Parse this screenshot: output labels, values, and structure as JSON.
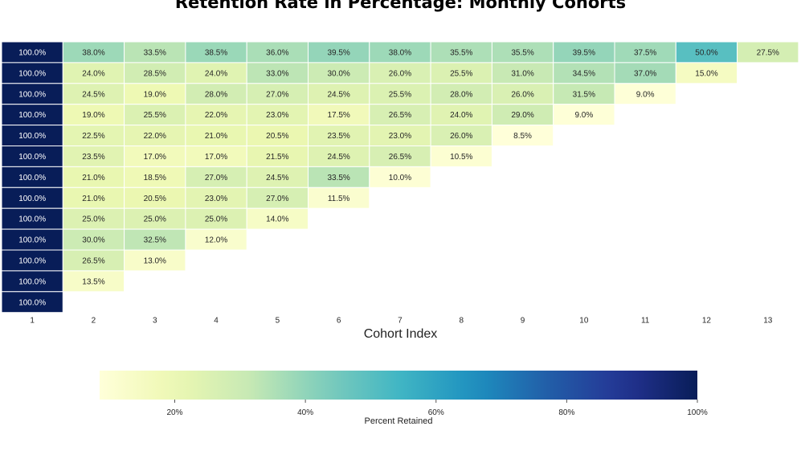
{
  "chart_data": {
    "type": "heatmap",
    "title": "Retention Rate in Percentage: Monthly Cohorts",
    "xlabel": "Cohort Index",
    "ylabel": "",
    "x": [
      "1",
      "2",
      "3",
      "4",
      "5",
      "6",
      "7",
      "8",
      "9",
      "10",
      "11",
      "12",
      "13"
    ],
    "rows": [
      [
        100.0,
        38.0,
        33.5,
        38.5,
        36.0,
        39.5,
        38.0,
        35.5,
        35.5,
        39.5,
        37.5,
        50.0,
        27.5
      ],
      [
        100.0,
        24.0,
        28.5,
        24.0,
        33.0,
        30.0,
        26.0,
        25.5,
        31.0,
        34.5,
        37.0,
        15.0
      ],
      [
        100.0,
        24.5,
        19.0,
        28.0,
        27.0,
        24.5,
        25.5,
        28.0,
        26.0,
        31.5,
        9.0
      ],
      [
        100.0,
        19.0,
        25.5,
        22.0,
        23.0,
        17.5,
        26.5,
        24.0,
        29.0,
        9.0
      ],
      [
        100.0,
        22.5,
        22.0,
        21.0,
        20.5,
        23.5,
        23.0,
        26.0,
        8.5
      ],
      [
        100.0,
        23.5,
        17.0,
        17.0,
        21.5,
        24.5,
        26.5,
        10.5
      ],
      [
        100.0,
        21.0,
        18.5,
        27.0,
        24.5,
        33.5,
        10.0
      ],
      [
        100.0,
        21.0,
        20.5,
        23.0,
        27.0,
        11.5
      ],
      [
        100.0,
        25.0,
        25.0,
        25.0,
        14.0
      ],
      [
        100.0,
        30.0,
        32.5,
        12.0
      ],
      [
        100.0,
        26.5,
        13.0
      ],
      [
        100.0,
        13.5
      ],
      [
        100.0
      ]
    ],
    "value_suffix": "%",
    "colormap": "YlGnBu",
    "color_range": [
      8.5,
      100.0
    ],
    "colorbar": {
      "label": "Percent Retained",
      "ticks": [
        20,
        40,
        60,
        80,
        100
      ],
      "tick_labels": [
        "20%",
        "40%",
        "60%",
        "80%",
        "100%"
      ],
      "orientation": "horizontal"
    },
    "grid": false
  }
}
